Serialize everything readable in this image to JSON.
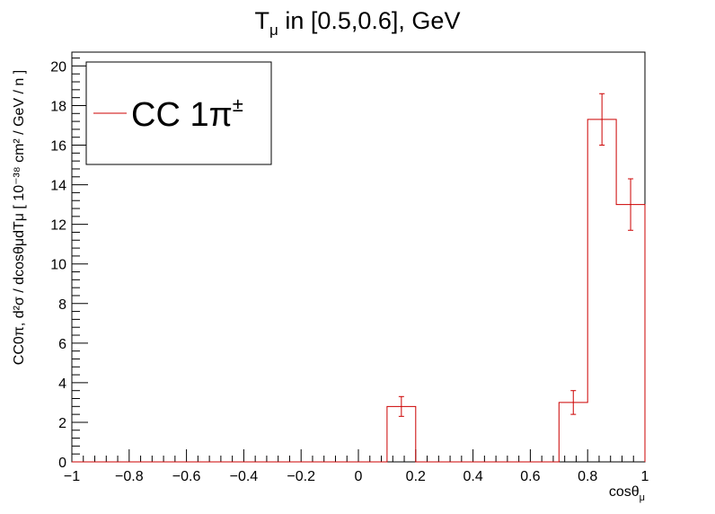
{
  "chart_data": {
    "type": "histogram",
    "title": {
      "main": "T",
      "sub": "μ",
      "rest": " in [0.5,0.6], GeV"
    },
    "xlabel": {
      "main": "cosθ",
      "sub": "μ"
    },
    "ylabel": "CC0π, d²σ / dcosθμdTμ [ 10⁻³⁸ cm² / GeV / n ]",
    "xlim": [
      -1,
      1
    ],
    "ylim": [
      0,
      20.7
    ],
    "x_ticks": [
      -1,
      -0.8,
      -0.6,
      -0.4,
      -0.2,
      0,
      0.2,
      0.4,
      0.6,
      0.8,
      1
    ],
    "x_tick_labels": [
      "−1",
      "−0.8",
      "−0.6",
      "−0.4",
      "−0.2",
      "0",
      "0.2",
      "0.4",
      "0.6",
      "0.8",
      "1"
    ],
    "y_ticks": [
      0,
      2,
      4,
      6,
      8,
      10,
      12,
      14,
      16,
      18,
      20
    ],
    "y_tick_labels": [
      "0",
      "2",
      "4",
      "6",
      "8",
      "10",
      "12",
      "14",
      "16",
      "18",
      "20"
    ],
    "bin_edges": [
      -1,
      -0.9,
      -0.8,
      -0.7,
      -0.6,
      -0.5,
      -0.4,
      -0.3,
      -0.2,
      -0.1,
      0,
      0.1,
      0.2,
      0.3,
      0.4,
      0.5,
      0.6,
      0.7,
      0.8,
      0.9,
      1.0
    ],
    "series": [
      {
        "name": "CC 1π±",
        "color": "#cc0000",
        "values": [
          0,
          0,
          0,
          0,
          0,
          0,
          0,
          0,
          0,
          0,
          0,
          2.8,
          0,
          0,
          0,
          0,
          0,
          3.0,
          17.3,
          13.0
        ],
        "errors": [
          0,
          0,
          0,
          0,
          0,
          0,
          0,
          0,
          0,
          0,
          0,
          0.5,
          0,
          0,
          0,
          0,
          0,
          0.6,
          1.3,
          1.3
        ]
      }
    ],
    "legend": {
      "position": "top-left",
      "label_main": "CC 1π",
      "label_sup": "±"
    },
    "grid": false
  }
}
